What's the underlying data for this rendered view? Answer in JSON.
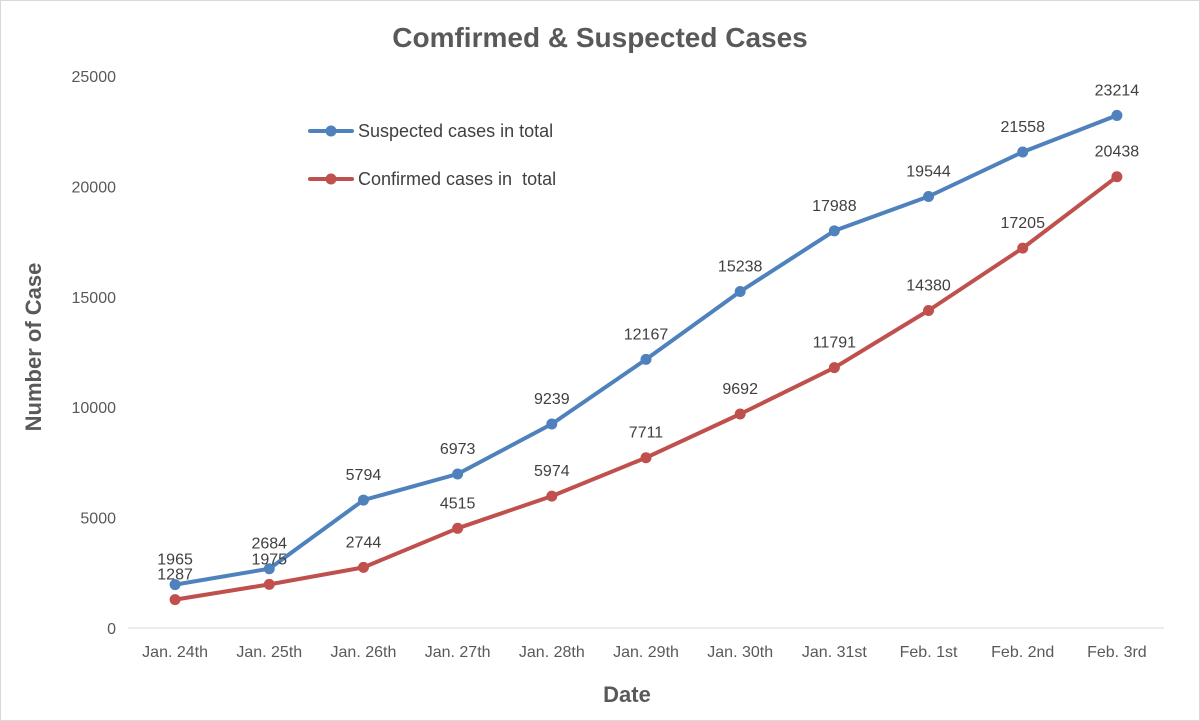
{
  "chart_data": {
    "type": "line",
    "title": "Comfirmed & Suspected Cases",
    "xlabel": "Date",
    "ylabel": "Number of Case",
    "categories": [
      "Jan. 24th",
      "Jan. 25th",
      "Jan. 26th",
      "Jan. 27th",
      "Jan. 28th",
      "Jan. 29th",
      "Jan. 30th",
      "Jan. 31st",
      "Feb. 1st",
      "Feb. 2nd",
      "Feb. 3rd"
    ],
    "ylim": [
      0,
      25000
    ],
    "yticks": [
      0,
      5000,
      10000,
      15000,
      20000,
      25000
    ],
    "grid": false,
    "legend_position": "top-left",
    "series": [
      {
        "name": "Suspected cases in total",
        "color": "#4f81bd",
        "values": [
          1965,
          2684,
          5794,
          6973,
          9239,
          12167,
          15238,
          17988,
          19544,
          21558,
          23214
        ]
      },
      {
        "name": "Confirmed cases in  total",
        "color": "#c0504d",
        "values": [
          1287,
          1975,
          2744,
          4515,
          5974,
          7711,
          9692,
          11791,
          14380,
          17205,
          20438
        ]
      }
    ]
  }
}
